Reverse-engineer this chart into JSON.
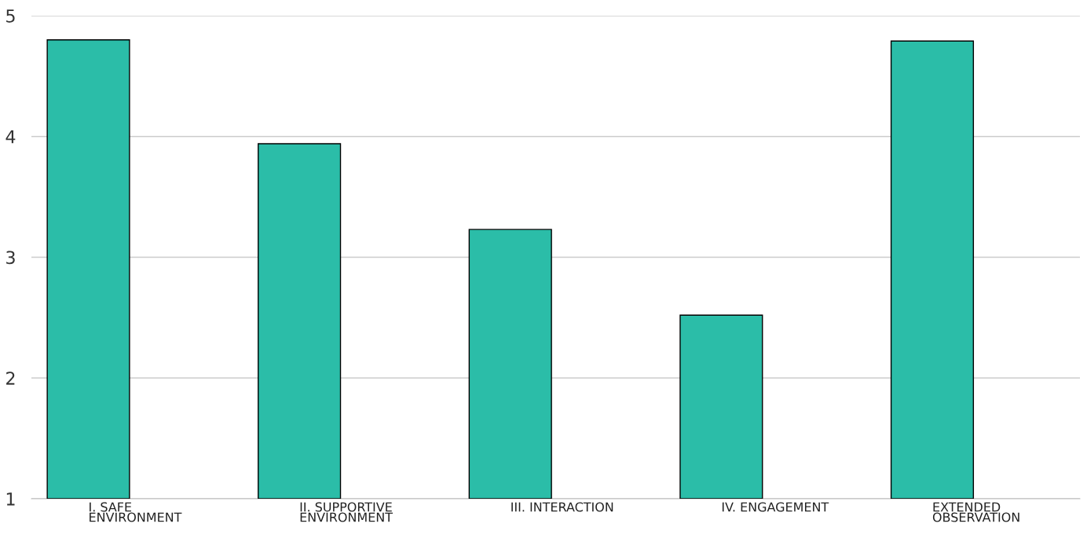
{
  "chart_data": {
    "type": "bar",
    "categories": [
      "I. SAFE\nENVIRONMENT",
      "II. SUPPORTIVE\nENVIRONMENT",
      "III. INTERACTION",
      "IV. ENGAGEMENT",
      "EXTENDED\nOBSERVATION"
    ],
    "values": [
      4.8,
      3.94,
      3.23,
      2.52,
      4.79
    ],
    "color": "#2bbda8",
    "ylim": [
      1,
      5
    ],
    "yticks": [
      1,
      2,
      3,
      4,
      5
    ],
    "grid": "y"
  }
}
